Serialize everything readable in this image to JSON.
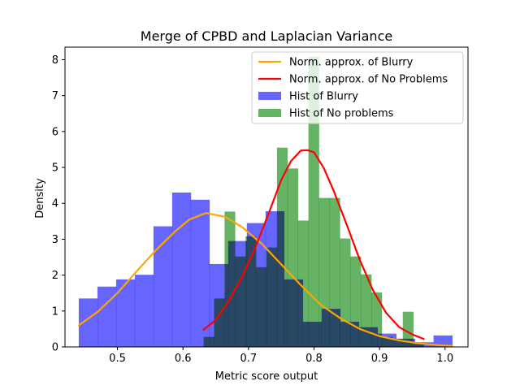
{
  "chart_data": {
    "type": "bar",
    "title": "Merge of CPBD and Laplacian Variance",
    "xlabel": "Metric score output",
    "ylabel": "Density",
    "xlim": [
      0.42,
      1.035
    ],
    "ylim": [
      0,
      8.35
    ],
    "xticks": [
      0.5,
      0.6,
      0.7,
      0.8,
      0.9,
      1.0
    ],
    "yticks": [
      0,
      1,
      2,
      3,
      4,
      5,
      6,
      7,
      8
    ],
    "xtick_labels": [
      "0.5",
      "0.6",
      "0.7",
      "0.8",
      "0.9",
      "1.0"
    ],
    "ytick_labels": [
      "0",
      "1",
      "2",
      "3",
      "4",
      "5",
      "6",
      "7",
      "8"
    ],
    "grid": false,
    "legend_position": "top-right",
    "histograms": [
      {
        "name": "Hist of Blurry",
        "color": "#6666ff",
        "edges": [
          0.441,
          0.4695,
          0.498,
          0.5265,
          0.555,
          0.5835,
          0.612,
          0.6405,
          0.669,
          0.6975,
          0.726,
          0.7545,
          0.783,
          0.8115,
          0.84,
          0.8685,
          0.897,
          0.9255,
          0.954,
          0.9825,
          1.011
        ],
        "values": [
          1.35,
          1.68,
          1.88,
          2.01,
          3.36,
          4.3,
          4.1,
          2.31,
          2.95,
          3.45,
          3.78,
          1.88,
          0.7,
          1.06,
          0.7,
          0.55,
          0.37,
          0.23,
          0.13,
          0.32
        ]
      },
      {
        "name": "Hist of No problems",
        "color": "#66b366",
        "edges": [
          0.6315,
          0.6475,
          0.6635,
          0.6795,
          0.6955,
          0.7115,
          0.7275,
          0.7435,
          0.7595,
          0.7755,
          0.7915,
          0.8075,
          0.8235,
          0.8395,
          0.8555,
          0.8715,
          0.8875,
          0.9035,
          0.9195,
          0.9355,
          0.9515,
          0.9675
        ],
        "values": [
          0.28,
          1.35,
          3.77,
          2.52,
          3.08,
          2.22,
          2.77,
          5.55,
          4.97,
          3.52,
          8.08,
          4.15,
          4.15,
          3.02,
          2.52,
          2.02,
          1.52,
          0.28,
          0.22,
          0.98,
          0.08
        ]
      }
    ],
    "series": [
      {
        "name": "Norm. approx. of Blurry",
        "color": "#ffa500",
        "x": [
          0.441,
          0.47,
          0.5,
          0.53,
          0.56,
          0.59,
          0.61,
          0.635,
          0.665,
          0.69,
          0.72,
          0.75,
          0.78,
          0.81,
          0.84,
          0.87,
          0.9,
          0.93,
          0.96,
          0.99,
          1.011
        ],
        "y": [
          0.6,
          0.98,
          1.5,
          2.12,
          2.72,
          3.25,
          3.55,
          3.73,
          3.62,
          3.34,
          2.88,
          2.3,
          1.72,
          1.18,
          0.8,
          0.5,
          0.3,
          0.18,
          0.1,
          0.05,
          0.03
        ]
      },
      {
        "name": "Norm. approx. of No Problems",
        "color": "#ff0000",
        "x": [
          0.6315,
          0.65,
          0.67,
          0.69,
          0.71,
          0.73,
          0.75,
          0.765,
          0.78,
          0.79,
          0.8,
          0.815,
          0.83,
          0.85,
          0.87,
          0.89,
          0.91,
          0.93,
          0.95,
          0.9675
        ],
        "y": [
          0.48,
          0.75,
          1.28,
          1.95,
          2.75,
          3.68,
          4.65,
          5.18,
          5.47,
          5.48,
          5.42,
          4.98,
          4.35,
          3.4,
          2.42,
          1.58,
          0.95,
          0.55,
          0.35,
          0.22
        ]
      }
    ]
  }
}
